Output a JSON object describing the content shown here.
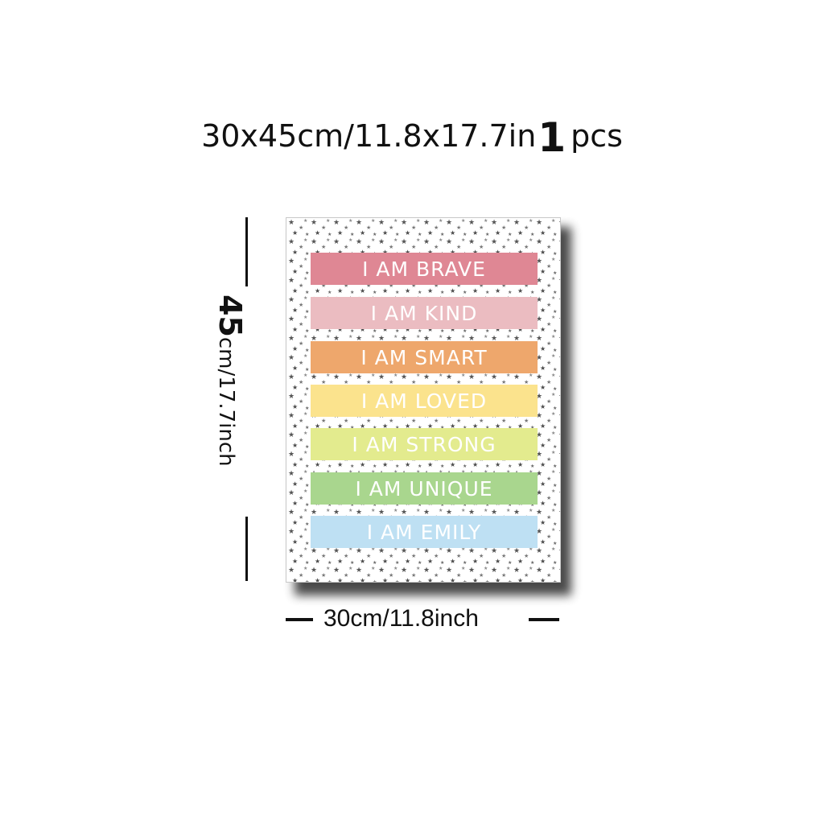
{
  "title": {
    "size": "30x45cm/11.8x17.7in",
    "quantity": "1",
    "unit": "pcs"
  },
  "poster": {
    "bands": [
      {
        "text": "I AM BRAVE",
        "color": "#df8794"
      },
      {
        "text": "I AM KIND",
        "color": "#ebbcc1"
      },
      {
        "text": "I AM SMART",
        "color": "#eea76c"
      },
      {
        "text": "I AM LOVED",
        "color": "#fbe38d"
      },
      {
        "text": "I AM STRONG",
        "color": "#e3eb8e"
      },
      {
        "text": "I AM UNIQUE",
        "color": "#a9d68e"
      },
      {
        "text": "I AM EMILY",
        "color": "#bee0f3"
      }
    ]
  },
  "dimensions": {
    "height_value": "45",
    "height_rest": "cm/17.7inch",
    "width": "30cm/11.8inch"
  }
}
